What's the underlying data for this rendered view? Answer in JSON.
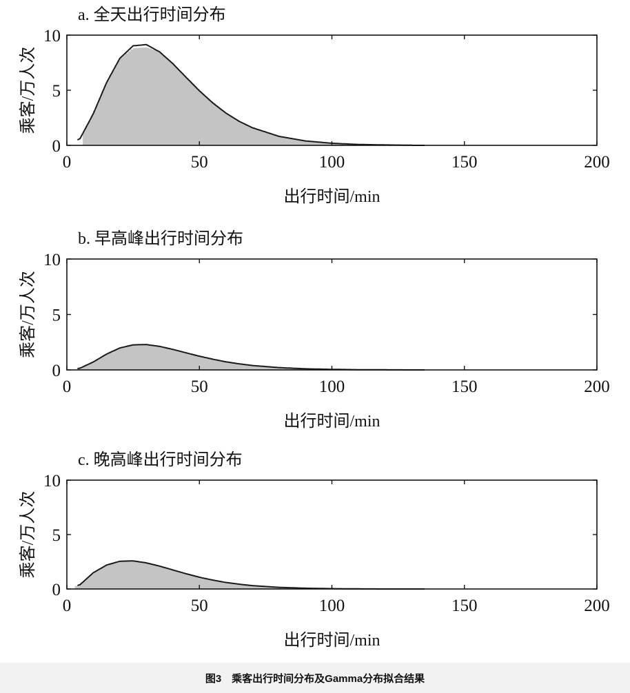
{
  "caption": "图3　乘客出行时间分布及Gamma分布拟合结果",
  "colors": {
    "histogram": "#c4c4c4",
    "fit_line": "#1a1a1a",
    "axes": "#111111"
  },
  "chart_data": [
    {
      "type": "bar",
      "title": "a. 全天出行时间分布",
      "xlabel": "出行时间/min",
      "ylabel": "乘客/万人次",
      "xlim": [
        0,
        200
      ],
      "ylim": [
        0,
        10
      ],
      "xticks": [
        "0",
        "50",
        "100",
        "150",
        "200"
      ],
      "yticks": [
        "0",
        "5",
        "10"
      ],
      "grid": false,
      "hist_range": [
        6,
        132
      ],
      "x": [
        5,
        10,
        15,
        20,
        25,
        30,
        35,
        40,
        45,
        50,
        55,
        60,
        65,
        70,
        80,
        90,
        100,
        110,
        120,
        130
      ],
      "series": [
        {
          "kind": "histogram",
          "values": [
            0.6,
            2.9,
            5.7,
            7.9,
            8.8,
            8.9,
            8.5,
            7.4,
            6.2,
            5.0,
            3.9,
            2.9,
            2.2,
            1.6,
            0.8,
            0.4,
            0.19,
            0.08,
            0.04,
            0.01
          ]
        },
        {
          "kind": "gamma-fit",
          "values": [
            0.62,
            2.88,
            5.7,
            7.9,
            9.03,
            9.14,
            8.48,
            7.41,
            6.17,
            4.95,
            3.86,
            2.93,
            2.18,
            1.6,
            0.82,
            0.4,
            0.19,
            0.08,
            0.04,
            0.01
          ]
        }
      ]
    },
    {
      "type": "bar",
      "title": "b. 早高峰出行时间分布",
      "xlabel": "出行时间/min",
      "ylabel": "乘客/万人次",
      "xlim": [
        0,
        200
      ],
      "ylim": [
        0,
        10
      ],
      "xticks": [
        "0",
        "50",
        "100",
        "150",
        "200"
      ],
      "yticks": [
        "0",
        "5",
        "10"
      ],
      "grid": false,
      "hist_range": [
        4,
        118
      ],
      "x": [
        5,
        10,
        15,
        20,
        25,
        30,
        35,
        40,
        45,
        50,
        55,
        60,
        65,
        70,
        80,
        90,
        100,
        110,
        120,
        130
      ],
      "series": [
        {
          "kind": "histogram",
          "values": [
            0.16,
            0.72,
            1.43,
            1.98,
            2.2,
            2.25,
            2.15,
            1.9,
            1.58,
            1.26,
            0.98,
            0.74,
            0.55,
            0.4,
            0.21,
            0.1,
            0.05,
            0.02,
            0.0,
            0.0
          ]
        },
        {
          "kind": "gamma-fit",
          "values": [
            0.16,
            0.72,
            1.43,
            1.98,
            2.26,
            2.29,
            2.12,
            1.85,
            1.54,
            1.24,
            0.97,
            0.73,
            0.55,
            0.4,
            0.21,
            0.1,
            0.05,
            0.02,
            0.01,
            0.0
          ]
        }
      ]
    },
    {
      "type": "bar",
      "title": "c. 晚高峰出行时间分布",
      "xlabel": "出行时间/min",
      "ylabel": "乘客/万人次",
      "xlim": [
        0,
        200
      ],
      "ylim": [
        0,
        10
      ],
      "xticks": [
        "0",
        "50",
        "100",
        "150",
        "200"
      ],
      "yticks": [
        "0",
        "5",
        "10"
      ],
      "grid": false,
      "hist_range": [
        3,
        112
      ],
      "x": [
        5,
        10,
        15,
        20,
        25,
        30,
        35,
        40,
        45,
        50,
        55,
        60,
        65,
        70,
        80,
        90,
        100,
        110,
        120,
        130
      ],
      "series": [
        {
          "kind": "histogram",
          "values": [
            0.4,
            1.5,
            2.2,
            2.52,
            2.56,
            2.4,
            2.1,
            1.75,
            1.4,
            1.08,
            0.82,
            0.6,
            0.44,
            0.31,
            0.15,
            0.07,
            0.03,
            0.01,
            0.0,
            0.0
          ]
        },
        {
          "kind": "gamma-fit",
          "values": [
            0.4,
            1.5,
            2.2,
            2.55,
            2.58,
            2.4,
            2.1,
            1.75,
            1.4,
            1.08,
            0.82,
            0.6,
            0.44,
            0.31,
            0.15,
            0.07,
            0.03,
            0.01,
            0.0,
            0.0
          ]
        }
      ]
    }
  ]
}
